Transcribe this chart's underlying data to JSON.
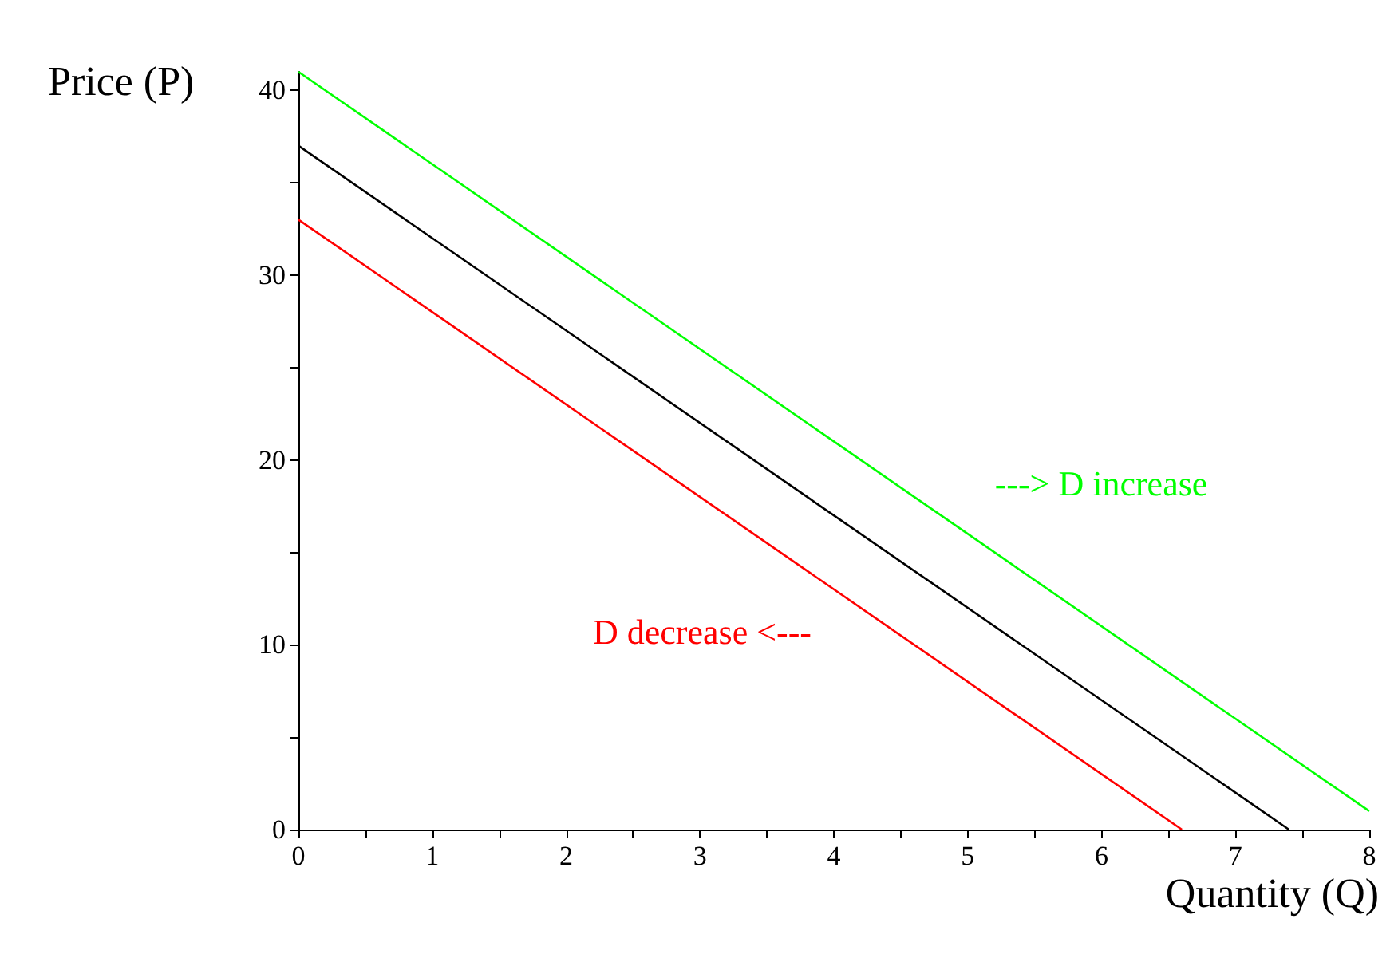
{
  "chart_data": {
    "type": "line",
    "xlabel": "Quantity (Q)",
    "ylabel": "Price (P)",
    "xlim": [
      0,
      8
    ],
    "ylim": [
      0,
      41
    ],
    "xticks": [
      0,
      {
        "value": 0.5,
        "label": null
      },
      1,
      {
        "value": 1.5,
        "label": null
      },
      2,
      {
        "value": 2.5,
        "label": null
      },
      3,
      {
        "value": 3.5,
        "label": null
      },
      4,
      {
        "value": 4.5,
        "label": null
      },
      5,
      {
        "value": 5.5,
        "label": null
      },
      6,
      {
        "value": 6.5,
        "label": null
      },
      7,
      {
        "value": 7.5,
        "label": null
      },
      8
    ],
    "yticks": [
      0,
      {
        "value": 5,
        "label": null
      },
      10,
      {
        "value": 15,
        "label": null
      },
      20,
      {
        "value": 25,
        "label": null
      },
      30,
      {
        "value": 35,
        "label": null
      },
      40
    ],
    "grid": false,
    "marker": "none",
    "line_style": "solid",
    "series": [
      {
        "color": "#00ff00",
        "x": [
          0,
          8
        ],
        "values": [
          41,
          1
        ]
      },
      {
        "color": "#000000",
        "x": [
          0,
          7.4
        ],
        "values": [
          37,
          0
        ]
      },
      {
        "color": "#ff0000",
        "x": [
          0,
          6.6
        ],
        "values": [
          33,
          0
        ]
      }
    ],
    "annotations": [
      "---> D increase",
      "D decrease <---"
    ]
  }
}
